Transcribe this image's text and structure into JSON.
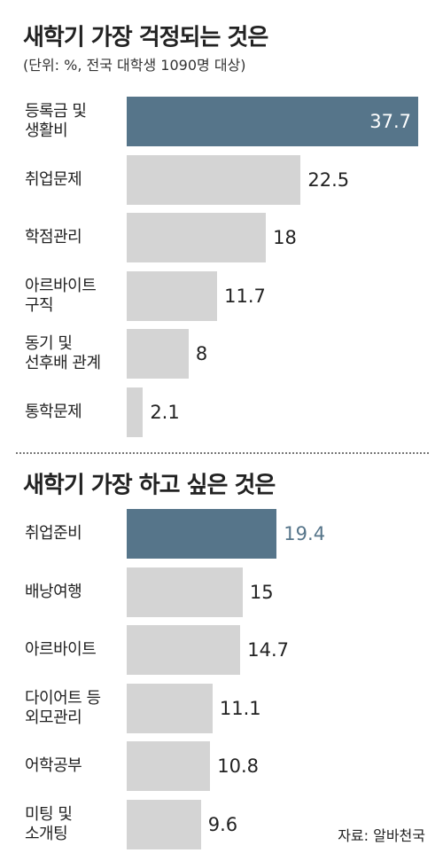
{
  "chart_data": [
    {
      "type": "bar",
      "title": "새학기 가장 걱정되는 것은",
      "subtitle": "(단위: %, 전국 대학생 1090명 대상)",
      "categories": [
        "등록금 및\n생활비",
        "취업문제",
        "학점관리",
        "아르바이트\n구직",
        "동기 및\n선후배 관계",
        "통학문제"
      ],
      "values": [
        37.7,
        22.5,
        18,
        11.7,
        8,
        2.1
      ],
      "color": "#d4d4d4",
      "highlight": 0,
      "highlight_color": "#56758a",
      "highlight_label_inside": true
    },
    {
      "type": "bar",
      "title": "새학기 가장 하고 싶은 것은",
      "categories": [
        "취업준비",
        "배낭여행",
        "아르바이트",
        "다이어트 등\n외모관리",
        "어학공부",
        "미팅 및\n소개팅"
      ],
      "values": [
        19.4,
        15,
        14.7,
        11.1,
        10.8,
        9.6
      ],
      "color": "#d4d4d4",
      "highlight": 0,
      "highlight_color": "#56758a",
      "highlight_label_inside": false,
      "source": "자료: 알바천국"
    }
  ]
}
